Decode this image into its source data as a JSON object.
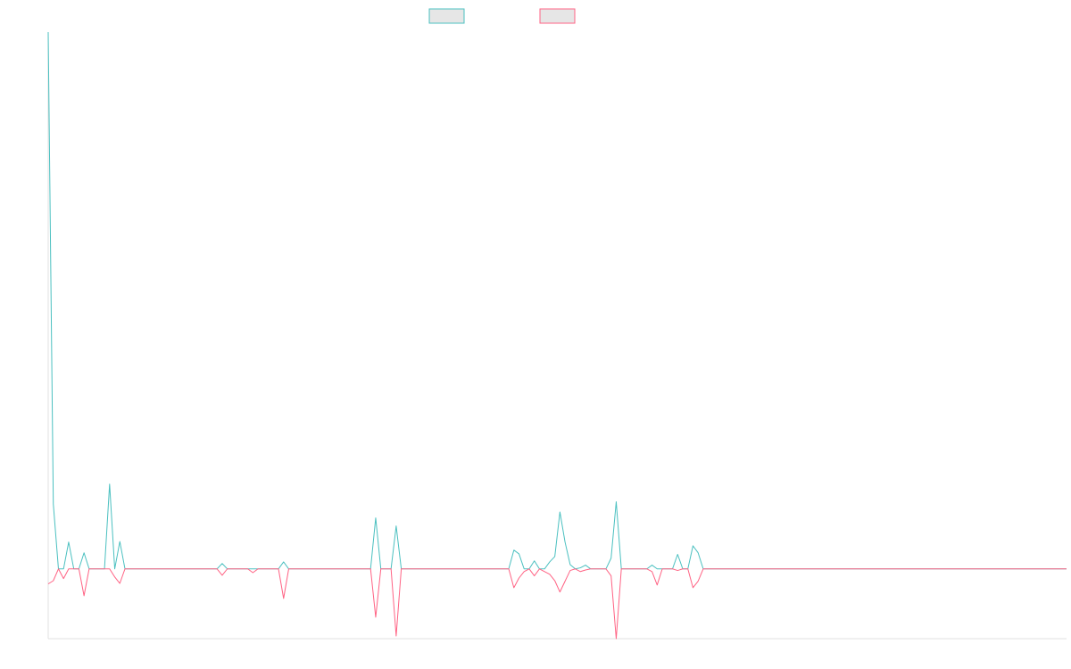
{
  "chart_data": {
    "type": "line",
    "categories": [
      null,
      null,
      null,
      null,
      null,
      null,
      null,
      null,
      null,
      null,
      null,
      null,
      null,
      null,
      null,
      null,
      null,
      null,
      null,
      null,
      null,
      null,
      null,
      null,
      null,
      null,
      null,
      null,
      null,
      null,
      null,
      null,
      null,
      null,
      null,
      null,
      null,
      null,
      null,
      null,
      null,
      null,
      null,
      null,
      null,
      null,
      null,
      null,
      null,
      null,
      null,
      null,
      null,
      null,
      null,
      null,
      null,
      null,
      null,
      null,
      null,
      null,
      null,
      null,
      null,
      null,
      null,
      null,
      null,
      null,
      null,
      null,
      null,
      null,
      null,
      null,
      null,
      null,
      null,
      null,
      null,
      null,
      null,
      null,
      null,
      null,
      null,
      null,
      null,
      null,
      null,
      null,
      null,
      null,
      null,
      null,
      null,
      null,
      null,
      null,
      null,
      null,
      null,
      null,
      null,
      null,
      null,
      null,
      null,
      null,
      null,
      null,
      null,
      null,
      null,
      null,
      null,
      null,
      null,
      null,
      null,
      null,
      null,
      null,
      null,
      null,
      null,
      null,
      null,
      null,
      null,
      null,
      null,
      null,
      null,
      null,
      null,
      null,
      null,
      null,
      null,
      null,
      null,
      null,
      null,
      null,
      null,
      null,
      null,
      null,
      null,
      null,
      null,
      null,
      null,
      null,
      null,
      null,
      null,
      null,
      null,
      null,
      null,
      null,
      null,
      null,
      null,
      null,
      null,
      null,
      null,
      null,
      null,
      null,
      null,
      null,
      null,
      null,
      null,
      null,
      null,
      null,
      null,
      null,
      null,
      null,
      null,
      null,
      null,
      null,
      null,
      null,
      null,
      null,
      null,
      null,
      null,
      null,
      null,
      null
    ],
    "series": [
      {
        "color": "#4bc0c0",
        "values": [
          100,
          12.1,
          0,
          0,
          5,
          0,
          0,
          3,
          0,
          0,
          0,
          0,
          15.8,
          0,
          5.1,
          0,
          0,
          0,
          0,
          0,
          0,
          0,
          0,
          0,
          0,
          0,
          0,
          0,
          0,
          0,
          0,
          0,
          0,
          0,
          1,
          0,
          0,
          0,
          0,
          0,
          0,
          0,
          0,
          0,
          0,
          0,
          1.3,
          0,
          0,
          0,
          0,
          0,
          0,
          0,
          0,
          0,
          0,
          0,
          0,
          0,
          0,
          0,
          0,
          0,
          9.5,
          0,
          0,
          0,
          8,
          0,
          0,
          0,
          0,
          0,
          0,
          0,
          0,
          0,
          0,
          0,
          0,
          0,
          0,
          0,
          0,
          0,
          0,
          0,
          0,
          0,
          0,
          3.5,
          2.8,
          0,
          0,
          1.5,
          0,
          0,
          1.3,
          2.3,
          10.6,
          5,
          0.8,
          0,
          0.2,
          0.7,
          0,
          0,
          0,
          0,
          2,
          12.5,
          0,
          0,
          0,
          0,
          0,
          0,
          0.7,
          0,
          0,
          0,
          0,
          2.7,
          0,
          0,
          4.3,
          3,
          0,
          0,
          0,
          0,
          0,
          0,
          0,
          0,
          0,
          0,
          0,
          0,
          0,
          0,
          0,
          0,
          0,
          0,
          0,
          0,
          0,
          0,
          0,
          0,
          0,
          0,
          0,
          0,
          0,
          0,
          0,
          0,
          0,
          0,
          0,
          0,
          0,
          0,
          0,
          0,
          0,
          0,
          0,
          0,
          0,
          0,
          0,
          0,
          0,
          0,
          0,
          0,
          0,
          0,
          0,
          0,
          0,
          0,
          0,
          0,
          0,
          0,
          0,
          0,
          0,
          0,
          0,
          0,
          0,
          0,
          0,
          0
        ]
      },
      {
        "color": "#ff6384",
        "values": [
          -2.8,
          -2.2,
          0,
          -1.8,
          0,
          0,
          0,
          -5,
          0,
          0,
          0,
          0,
          0,
          -1.5,
          -2.7,
          0,
          0,
          0,
          0,
          0,
          0,
          0,
          0,
          0,
          0,
          0,
          0,
          0,
          0,
          0,
          0,
          0,
          0,
          0,
          -1.2,
          0,
          0,
          0,
          0,
          0,
          -0.7,
          0,
          0,
          0,
          0,
          0,
          -5.5,
          0,
          0,
          0,
          0,
          0,
          0,
          0,
          0,
          0,
          0,
          0,
          0,
          0,
          0,
          0,
          0,
          0,
          -9,
          0,
          0,
          0,
          -12.5,
          0,
          0,
          0,
          0,
          0,
          0,
          0,
          0,
          0,
          0,
          0,
          0,
          0,
          0,
          0,
          0,
          0,
          0,
          0,
          0,
          0,
          0,
          -3.5,
          -1.7,
          -0.5,
          0,
          -1.3,
          0,
          -0.5,
          -1,
          -2.2,
          -4.3,
          -2.3,
          -0.3,
          0,
          -0.5,
          -0.2,
          0,
          0,
          0,
          0,
          -1.3,
          -13,
          0,
          0,
          0,
          0,
          0,
          0,
          -0.5,
          -3,
          0,
          0,
          0,
          -0.3,
          0,
          0,
          -3.5,
          -2.3,
          0,
          0,
          0,
          0,
          0,
          0,
          0,
          0,
          0,
          0,
          0,
          0,
          0,
          0,
          0,
          0,
          0,
          0,
          0,
          0,
          0,
          0,
          0,
          0,
          0,
          0,
          0,
          0,
          0,
          0,
          0,
          0,
          0,
          0,
          0,
          0,
          0,
          0,
          0,
          0,
          0,
          0,
          0,
          0,
          0,
          0,
          0,
          0,
          0,
          0,
          0,
          0,
          0,
          0,
          0,
          0,
          0,
          0,
          0,
          0,
          0,
          0,
          0,
          0,
          0,
          0,
          0,
          0,
          0,
          0,
          0,
          0
        ]
      }
    ],
    "ylim": [
      -13,
      100
    ]
  }
}
